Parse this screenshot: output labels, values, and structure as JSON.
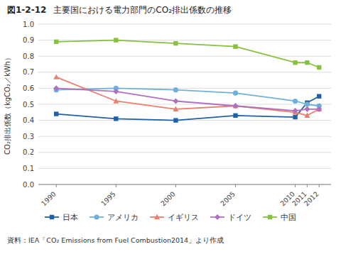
{
  "chart_data": {
    "type": "line",
    "title": "主要国における電力部門のCO₂排出係数の推移",
    "y_label": "CO₂排出係数（kgCO₂／kWh）",
    "annotations": [
      "図1-2-12",
      "資料：IEA「CO₂ Emissions from Fuel Combustion2014」より作成"
    ],
    "x": [
      1990,
      1995,
      2000,
      2005,
      2010,
      2011,
      2012
    ],
    "xlim": [
      1988.5,
      2013.0
    ],
    "xticks": [
      1990,
      1995,
      2000,
      2005,
      2010,
      2011,
      2012
    ],
    "series": [
      {
        "name": "日本",
        "color": "#2060a8",
        "marker": "square",
        "values": [
          0.44,
          0.41,
          0.4,
          0.43,
          0.42,
          0.51,
          0.55
        ]
      },
      {
        "name": "アメリカ",
        "color": "#70b0d8",
        "marker": "circle",
        "values": [
          0.59,
          0.6,
          0.59,
          0.57,
          0.52,
          0.5,
          0.49
        ]
      },
      {
        "name": "イギリス",
        "color": "#e88070",
        "marker": "triangle",
        "values": [
          0.67,
          0.52,
          0.47,
          0.49,
          0.45,
          0.43,
          0.47
        ]
      },
      {
        "name": "ドイツ",
        "color": "#b070c0",
        "marker": "diamond",
        "values": [
          0.6,
          0.58,
          0.52,
          0.49,
          0.46,
          0.47,
          0.47
        ]
      },
      {
        "name": "中国",
        "color": "#88c040",
        "marker": "square",
        "values": [
          0.89,
          0.9,
          0.88,
          0.86,
          0.76,
          0.76,
          0.73
        ]
      }
    ],
    "ylim": [
      0.0,
      1.0
    ],
    "yticks": [
      {
        "value": 0.0,
        "label": "0.0"
      },
      0.1,
      0.2,
      0.3,
      0.4,
      0.5,
      0.6,
      0.7,
      0.8,
      0.9,
      {
        "value": 1.0,
        "label": "1.0"
      }
    ],
    "grid": true,
    "legend": "bottom"
  }
}
